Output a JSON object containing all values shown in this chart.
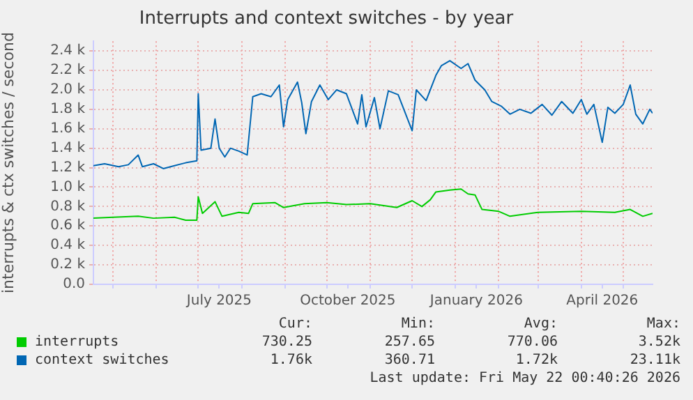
{
  "chart_data": {
    "type": "line",
    "title": "Interrupts and context switches - by year",
    "ylabel": "interrupts & ctx switches / second",
    "xlim": [
      "2025-04-17",
      "2026-05-22"
    ],
    "xticks": [
      {
        "value": "2025-05-01",
        "label": null
      },
      {
        "value": "2025-06-01",
        "label": null
      },
      {
        "value": "2025-07-01",
        "label": null
      },
      {
        "value": "2025-07-16",
        "label": "July 2025"
      },
      {
        "value": "2025-08-01",
        "label": null
      },
      {
        "value": "2025-09-01",
        "label": null
      },
      {
        "value": "2025-10-01",
        "label": null
      },
      {
        "value": "2025-10-16",
        "label": "October 2025"
      },
      {
        "value": "2025-11-01",
        "label": null
      },
      {
        "value": "2025-12-01",
        "label": null
      },
      {
        "value": "2026-01-01",
        "label": null
      },
      {
        "value": "2026-01-16",
        "label": "January 2026"
      },
      {
        "value": "2026-02-01",
        "label": null
      },
      {
        "value": "2026-03-01",
        "label": null
      },
      {
        "value": "2026-04-01",
        "label": null
      },
      {
        "value": "2026-04-16",
        "label": "April 2026"
      },
      {
        "value": "2026-05-01",
        "label": null
      }
    ],
    "ylim": [
      0,
      2500
    ],
    "yticks": [
      {
        "value": 0,
        "label": "0.0"
      },
      {
        "value": 200,
        "label": "0.2 k"
      },
      {
        "value": 400,
        "label": "0.4 k"
      },
      {
        "value": 600,
        "label": "0.6 k"
      },
      {
        "value": 800,
        "label": "0.8 k"
      },
      {
        "value": 1000,
        "label": "1.0 k"
      },
      {
        "value": 1200,
        "label": "1.2 k"
      },
      {
        "value": 1400,
        "label": "1.4 k"
      },
      {
        "value": 1600,
        "label": "1.6 k"
      },
      {
        "value": 1800,
        "label": "1.8 k"
      },
      {
        "value": 2000,
        "label": "2.0 k"
      },
      {
        "value": 2200,
        "label": "2.2 k"
      },
      {
        "value": 2400,
        "label": "2.4 k"
      }
    ],
    "grid": true,
    "legend": "bottom left",
    "marker": "none",
    "line_style": "solid",
    "series": [
      {
        "name": "interrupts",
        "color": "#00cc00",
        "x": [
          "2025-04-17",
          "2025-05-01",
          "2025-05-19",
          "2025-05-30",
          "2025-06-14",
          "2025-06-22",
          "2025-06-30",
          "2025-07-01",
          "2025-07-04",
          "2025-07-13",
          "2025-07-18",
          "2025-07-30",
          "2025-08-06",
          "2025-08-09",
          "2025-08-25",
          "2025-08-31",
          "2025-09-15",
          "2025-10-01",
          "2025-10-15",
          "2025-11-01",
          "2025-11-20",
          "2025-12-01",
          "2025-12-08",
          "2025-12-14",
          "2025-12-18",
          "2025-12-28",
          "2026-01-05",
          "2026-01-10",
          "2026-01-15",
          "2026-01-20",
          "2026-02-01",
          "2026-02-09",
          "2026-03-01",
          "2026-04-01",
          "2026-04-25",
          "2026-05-06",
          "2026-05-15",
          "2026-05-22"
        ],
        "values": [
          680,
          690,
          700,
          680,
          690,
          660,
          660,
          900,
          730,
          850,
          700,
          740,
          730,
          830,
          840,
          790,
          830,
          840,
          820,
          830,
          790,
          860,
          800,
          870,
          950,
          970,
          980,
          930,
          920,
          770,
          750,
          700,
          740,
          750,
          740,
          770,
          700,
          730
        ]
      },
      {
        "name": "context switches",
        "color": "#0066b3",
        "x": [
          "2025-04-17",
          "2025-04-25",
          "2025-05-05",
          "2025-05-12",
          "2025-05-19",
          "2025-05-22",
          "2025-05-30",
          "2025-06-06",
          "2025-06-14",
          "2025-06-22",
          "2025-06-30",
          "2025-07-01",
          "2025-07-03",
          "2025-07-10",
          "2025-07-13",
          "2025-07-16",
          "2025-07-20",
          "2025-07-24",
          "2025-07-30",
          "2025-08-05",
          "2025-08-09",
          "2025-08-15",
          "2025-08-22",
          "2025-08-28",
          "2025-08-31",
          "2025-09-03",
          "2025-09-10",
          "2025-09-13",
          "2025-09-16",
          "2025-09-20",
          "2025-09-26",
          "2025-10-02",
          "2025-10-08",
          "2025-10-15",
          "2025-10-23",
          "2025-10-26",
          "2025-10-29",
          "2025-11-04",
          "2025-11-08",
          "2025-11-14",
          "2025-11-21",
          "2025-12-01",
          "2025-12-04",
          "2025-12-11",
          "2025-12-18",
          "2025-12-22",
          "2025-12-28",
          "2026-01-05",
          "2026-01-10",
          "2026-01-15",
          "2026-01-22",
          "2026-01-27",
          "2026-02-03",
          "2026-02-09",
          "2026-02-16",
          "2026-02-24",
          "2026-03-04",
          "2026-03-11",
          "2026-03-18",
          "2026-03-26",
          "2026-04-01",
          "2026-04-05",
          "2026-04-10",
          "2026-04-16",
          "2026-04-20",
          "2026-04-25",
          "2026-05-01",
          "2026-05-06",
          "2026-05-10",
          "2026-05-15",
          "2026-05-20",
          "2026-05-22"
        ],
        "values": [
          1220,
          1240,
          1210,
          1230,
          1330,
          1210,
          1240,
          1190,
          1220,
          1250,
          1270,
          1960,
          1380,
          1400,
          1700,
          1400,
          1310,
          1400,
          1370,
          1330,
          1930,
          1960,
          1930,
          2050,
          1620,
          1900,
          2080,
          1870,
          1550,
          1880,
          2050,
          1900,
          2000,
          1960,
          1650,
          1950,
          1620,
          1920,
          1600,
          1990,
          1950,
          1580,
          2000,
          1890,
          2150,
          2250,
          2300,
          2220,
          2270,
          2100,
          2000,
          1880,
          1830,
          1750,
          1800,
          1760,
          1850,
          1740,
          1880,
          1760,
          1900,
          1750,
          1850,
          1460,
          1820,
          1760,
          1850,
          2050,
          1750,
          1650,
          1800,
          1760
        ]
      }
    ],
    "annotations": [
      "Cur:",
      "Min:",
      "Avg:",
      "Max:",
      "730.25",
      "257.65",
      "770.06",
      "3.52k",
      "1.76k",
      "360.71",
      "1.72k",
      "23.11k",
      "Last update: Fri May 22 00:40:26 2026"
    ]
  }
}
